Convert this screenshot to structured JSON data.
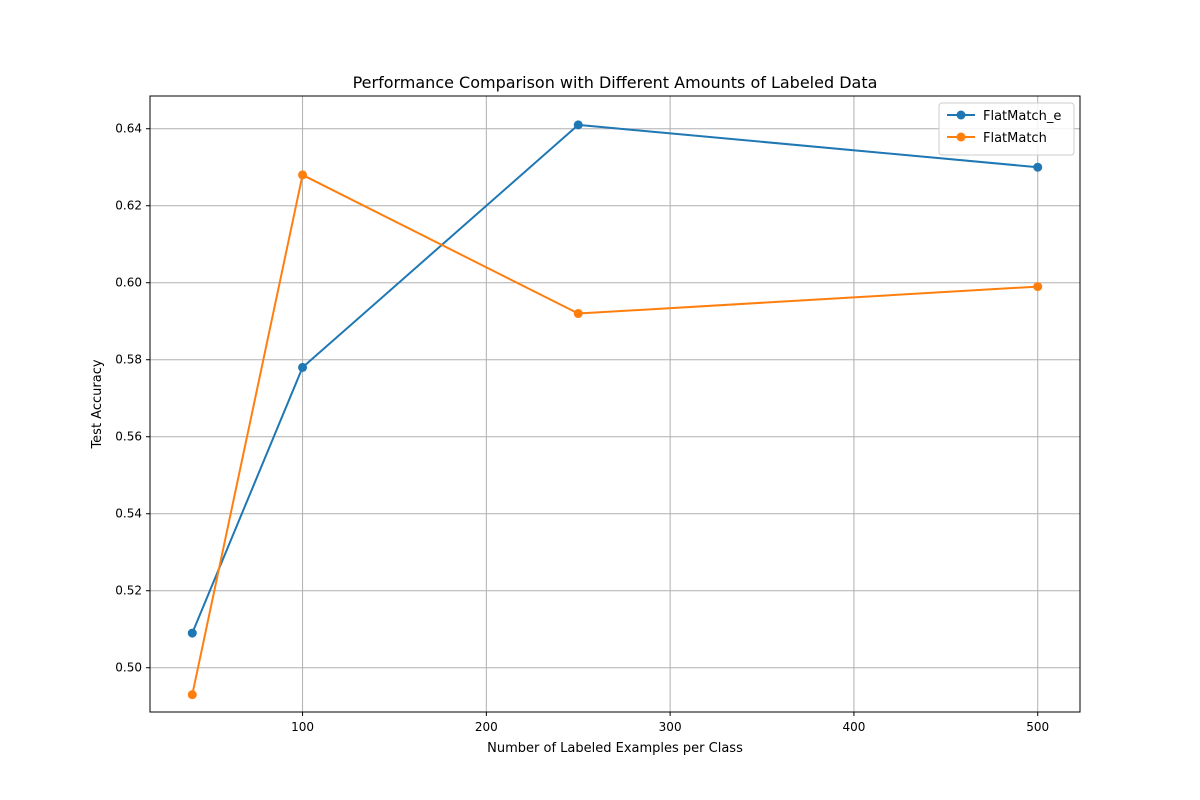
{
  "chart_data": {
    "type": "line",
    "title": "Performance Comparison with Different Amounts of Labeled Data",
    "xlabel": "Number of Labeled Examples per Class",
    "ylabel": "Test Accuracy",
    "xlim": [
      17,
      523
    ],
    "ylim": [
      0.4885,
      0.6485
    ],
    "xticks": [
      100,
      200,
      300,
      400,
      500
    ],
    "xtick_labels": [
      "100",
      "200",
      "300",
      "400",
      "500"
    ],
    "yticks": [
      0.5,
      0.52,
      0.54,
      0.56,
      0.58,
      0.6,
      0.62,
      0.64
    ],
    "ytick_labels": [
      "0.50",
      "0.52",
      "0.54",
      "0.56",
      "0.58",
      "0.60",
      "0.62",
      "0.64"
    ],
    "grid": true,
    "legend_position": "top-right",
    "x": [
      40,
      100,
      250,
      500
    ],
    "series": [
      {
        "name": "FlatMatch_e",
        "color": "#1f77b4",
        "values": [
          0.509,
          0.578,
          0.641,
          0.63
        ]
      },
      {
        "name": "FlatMatch",
        "color": "#ff7f0e",
        "values": [
          0.493,
          0.628,
          0.592,
          0.599
        ]
      }
    ]
  }
}
